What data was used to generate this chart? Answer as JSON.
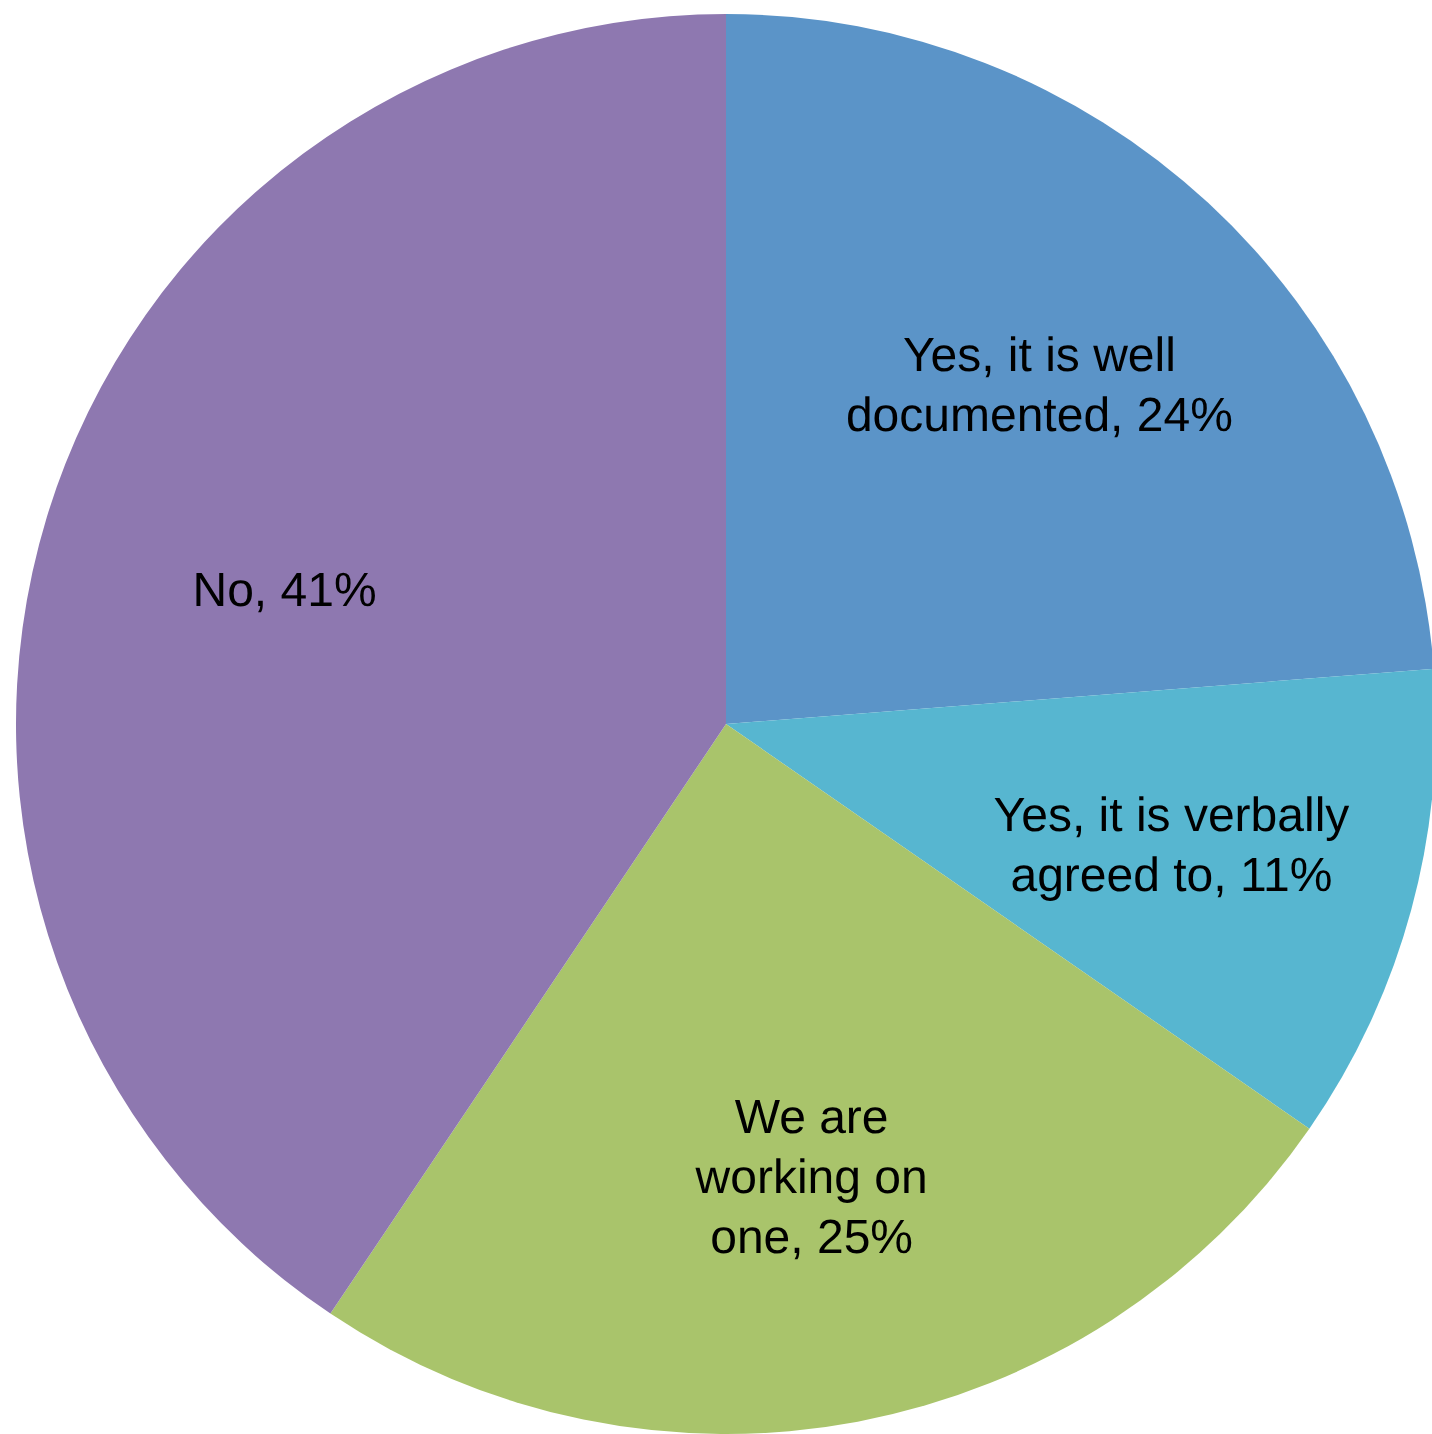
{
  "chart_data": {
    "type": "pie",
    "categories": [
      "Yes, it is well documented",
      "Yes, it is verbally agreed to",
      "We are working on one",
      "No"
    ],
    "values": [
      24,
      11,
      25,
      41
    ],
    "colors": [
      "#5b94c8",
      "#57b6d0",
      "#a9c46b",
      "#8e78b0"
    ],
    "value_labels": [
      "24%",
      "11%",
      "25%",
      "41%"
    ]
  }
}
